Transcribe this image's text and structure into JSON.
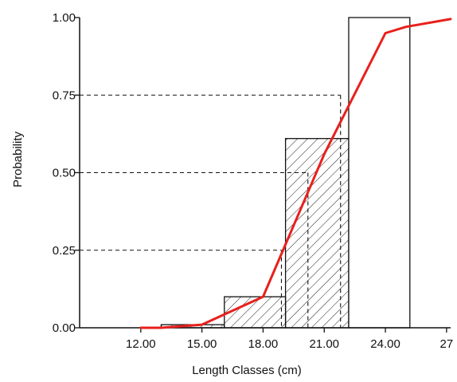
{
  "chart_data": {
    "type": "bar",
    "title": "",
    "xlabel": "Length Classes (cm)",
    "ylabel": "Probability",
    "xlim": [
      9,
      27.2
    ],
    "ylim": [
      0,
      1
    ],
    "x_tick_labels": [
      {
        "x": 12,
        "label": "12.00"
      },
      {
        "x": 15,
        "label": "15.00"
      },
      {
        "x": 18,
        "label": "18.00"
      },
      {
        "x": 21,
        "label": "21.00"
      },
      {
        "x": 24,
        "label": "24.00"
      },
      {
        "x": 27,
        "label": "27"
      }
    ],
    "y_tick_labels": [
      {
        "y": 0,
        "label": "0.00"
      },
      {
        "y": 0.25,
        "label": "0.25"
      },
      {
        "y": 0.5,
        "label": "0.50"
      },
      {
        "y": 0.75,
        "label": "0.75"
      },
      {
        "y": 1,
        "label": "1.00"
      }
    ],
    "bars": [
      {
        "x0": 13.0,
        "x1": 16.1,
        "value": 0.01,
        "hatched": true
      },
      {
        "x0": 16.1,
        "x1": 19.1,
        "value": 0.1,
        "hatched": true
      },
      {
        "x0": 19.1,
        "x1": 22.2,
        "value": 0.61,
        "hatched": true
      },
      {
        "x0": 22.2,
        "x1": 25.2,
        "value": 1.0,
        "hatched": false
      }
    ],
    "series": [
      {
        "color": "#e8201c",
        "x": [
          12.0,
          13.0,
          15.0,
          18.0,
          21.0,
          24.0,
          25.0,
          27.2
        ],
        "y": [
          0.0,
          0.0,
          0.01,
          0.1,
          0.56,
          0.95,
          0.97,
          0.995
        ]
      }
    ],
    "reference_lines": [
      {
        "y": 0.25,
        "x_end": 18.9
      },
      {
        "y": 0.5,
        "x_end": 20.2
      },
      {
        "y": 0.75,
        "x_end": 21.8
      }
    ]
  }
}
